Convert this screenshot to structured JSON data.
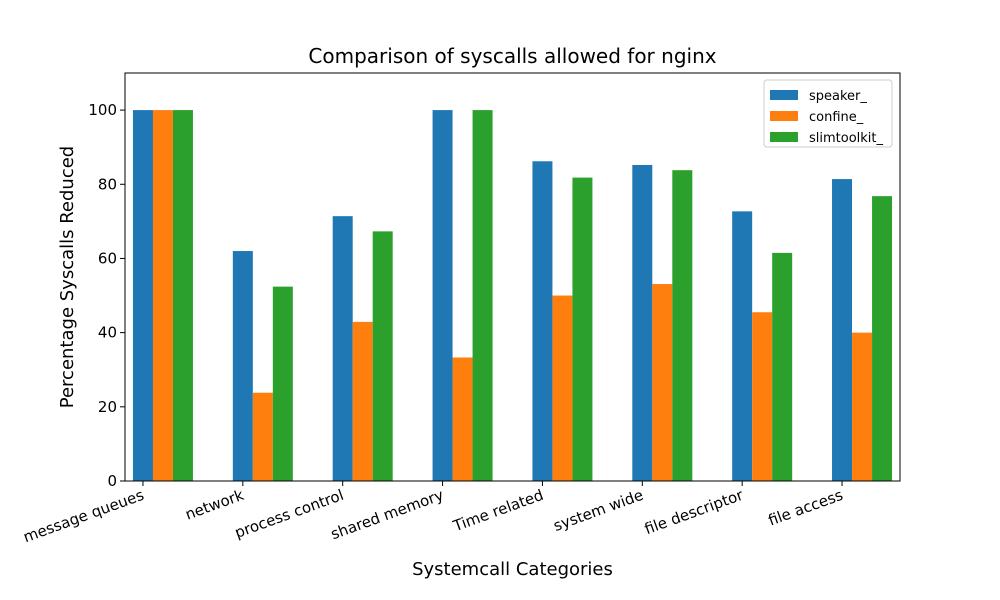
{
  "chart_data": {
    "type": "bar",
    "title": "Comparison of syscalls allowed for nginx",
    "xlabel": "Systemcall Categories",
    "ylabel": "Percentage Syscalls Reduced",
    "ylim": [
      0,
      110
    ],
    "yticks": [
      0,
      20,
      40,
      60,
      80,
      100
    ],
    "grid": false,
    "legend_position": "top-right",
    "categories": [
      "message queues",
      "network",
      "process control",
      "shared memory",
      "Time related",
      "system wide",
      "file descriptor",
      "file access"
    ],
    "series": [
      {
        "name": "speaker_",
        "color": "#1f77b4",
        "values": [
          100,
          62,
          71.4,
          100,
          86.2,
          85.2,
          72.7,
          81.4
        ]
      },
      {
        "name": "confine_",
        "color": "#ff7f0e",
        "values": [
          100,
          23.8,
          42.9,
          33.3,
          50,
          53.1,
          45.5,
          40
        ]
      },
      {
        "name": "slimtoolkit_",
        "color": "#2ca02c",
        "values": [
          100,
          52.4,
          67.3,
          100,
          81.8,
          83.8,
          61.5,
          76.8
        ]
      }
    ]
  }
}
